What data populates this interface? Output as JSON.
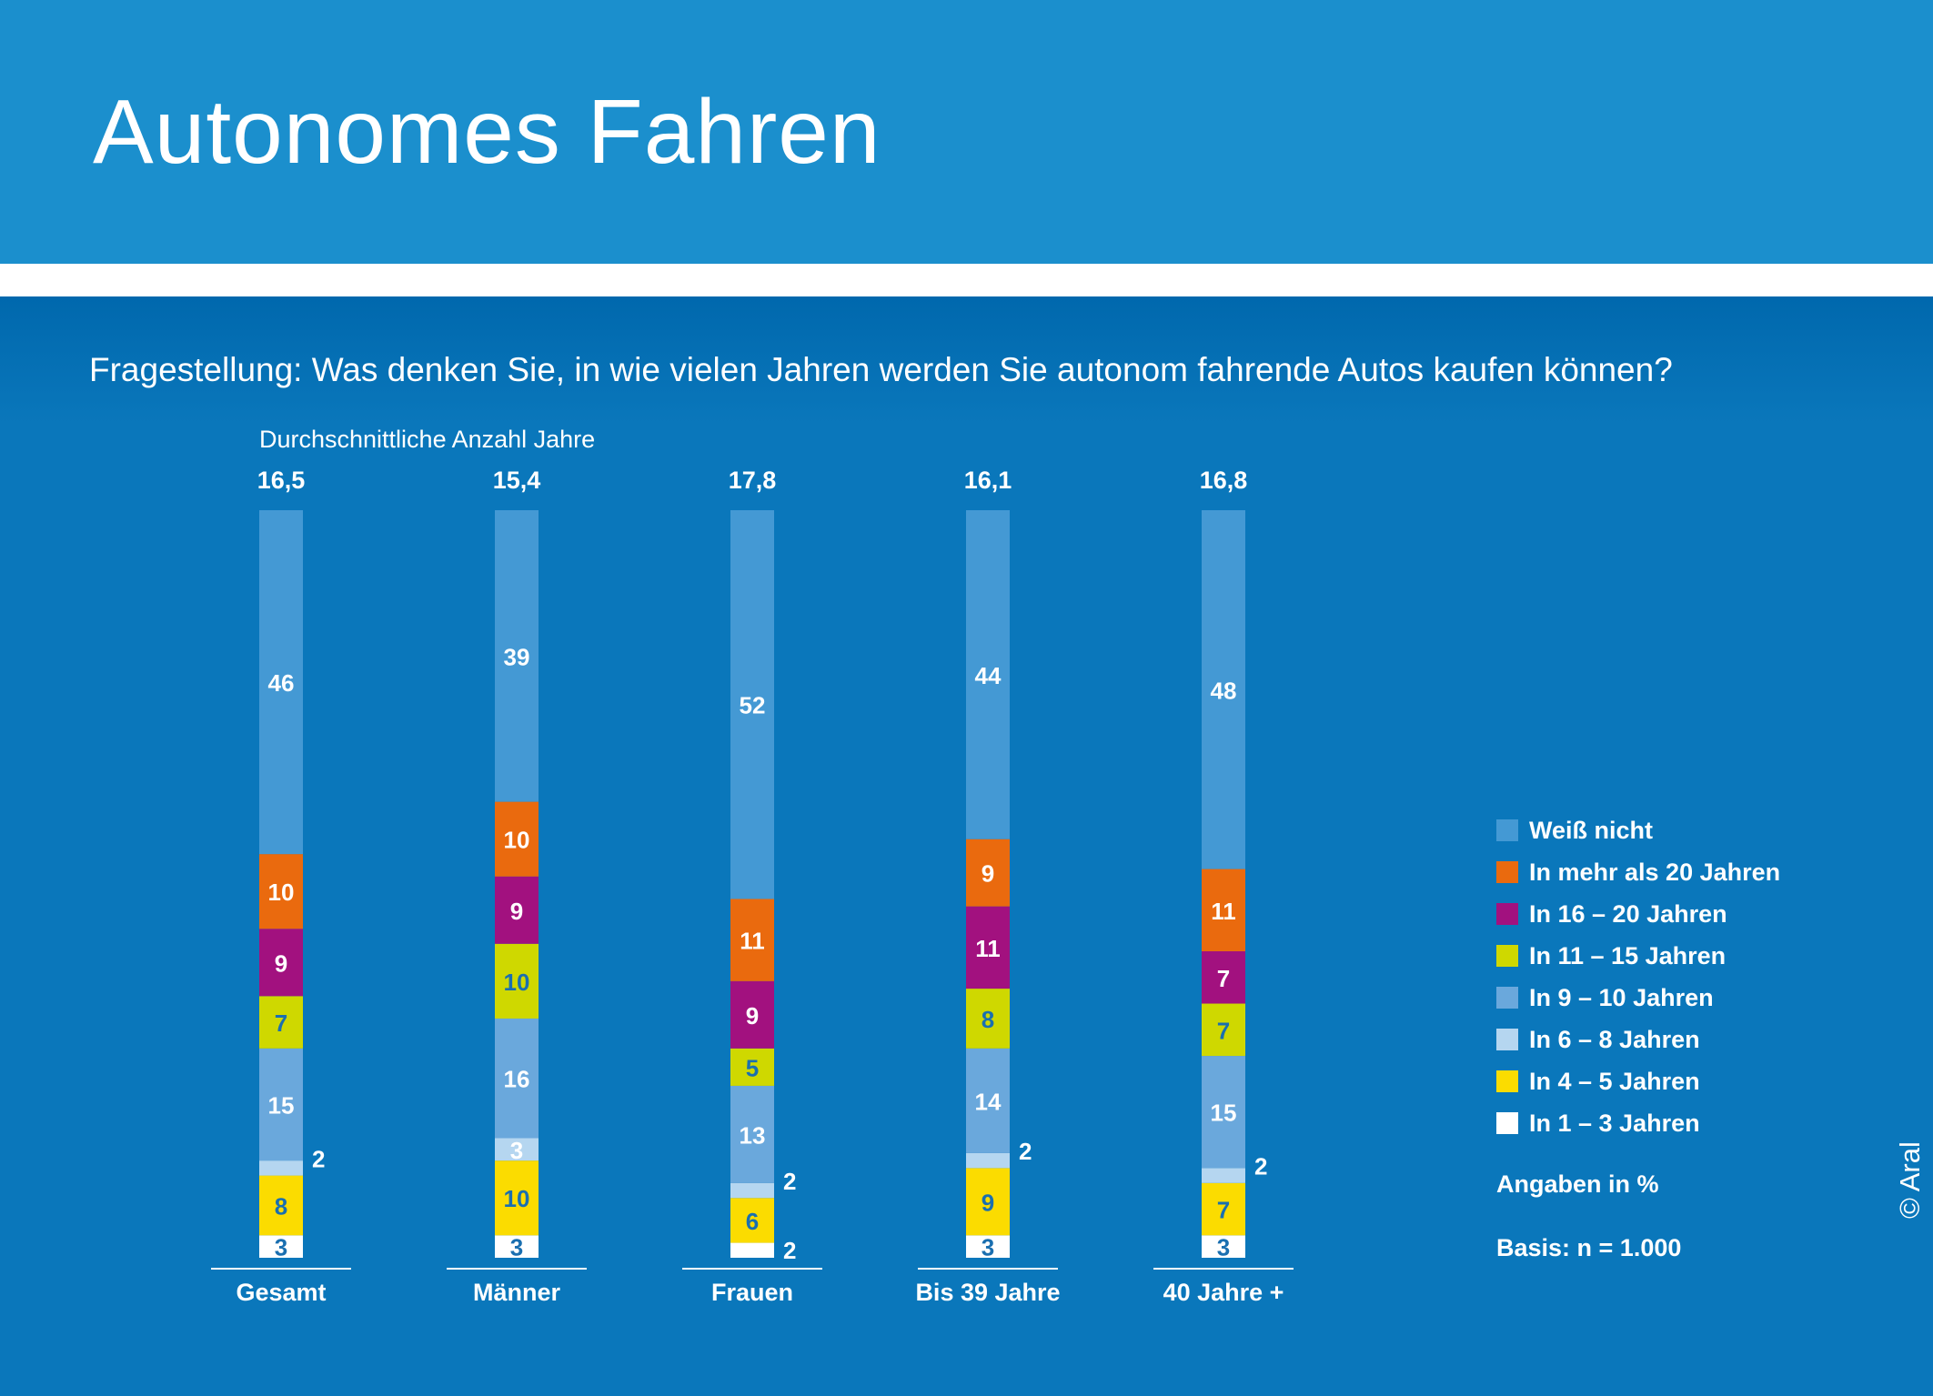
{
  "title": "Autonomes Fahren",
  "question": "Fragestellung: Was denken Sie, in wie vielen Jahren werden Sie autonom fahrende Autos kaufen können?",
  "average_caption": "Durchschnittliche Anzahl Jahre",
  "unit_note": "Angaben in %",
  "basis_note": "Basis: n = 1.000",
  "copyright": "© Aral",
  "colors": {
    "header": "#1b8fcd",
    "background": "#0a77bb",
    "label_white": "#ffffff",
    "label_blue": "#1a6fb0"
  },
  "chart_data": {
    "type": "bar",
    "stacked": true,
    "categories": [
      "Gesamt",
      "Männer",
      "Frauen",
      "Bis 39 Jahre",
      "40 Jahre +"
    ],
    "averages": [
      "16,5",
      "15,4",
      "17,8",
      "16,1",
      "16,8"
    ],
    "series": [
      {
        "name": "In 1 – 3 Jahren",
        "color": "#ffffff",
        "label_color": "#1a6fb0",
        "values": [
          3,
          3,
          2,
          3,
          3
        ]
      },
      {
        "name": "In 4 – 5 Jahren",
        "color": "#fbdc00",
        "label_color": "#1a6fb0",
        "values": [
          8,
          10,
          6,
          9,
          7
        ]
      },
      {
        "name": "In 6 – 8 Jahren",
        "color": "#b5d6f0",
        "label_color": "#ffffff",
        "values": [
          2,
          3,
          2,
          2,
          2
        ]
      },
      {
        "name": "In 9 – 10 Jahren",
        "color": "#6aa8dc",
        "label_color": "#ffffff",
        "values": [
          15,
          16,
          13,
          14,
          15
        ]
      },
      {
        "name": "In 11 – 15 Jahren",
        "color": "#cfd800",
        "label_color": "#1a6fb0",
        "values": [
          7,
          10,
          5,
          8,
          7
        ]
      },
      {
        "name": "In 16 – 20 Jahren",
        "color": "#a2117f",
        "label_color": "#ffffff",
        "values": [
          9,
          9,
          9,
          11,
          7
        ]
      },
      {
        "name": "In mehr als 20 Jahren",
        "color": "#ea6a0e",
        "label_color": "#ffffff",
        "values": [
          10,
          10,
          11,
          9,
          11
        ]
      },
      {
        "name": "Weiß nicht",
        "color": "#4499d4",
        "label_color": "#ffffff",
        "values": [
          46,
          39,
          52,
          44,
          48
        ]
      }
    ],
    "legend_order": [
      "Weiß nicht",
      "In mehr als 20 Jahren",
      "In 16 – 20 Jahren",
      "In 11 – 15 Jahren",
      "In 9 – 10 Jahren",
      "In 6 – 8 Jahren",
      "In 4 – 5 Jahren",
      "In 1 – 3 Jahren"
    ],
    "legend_position": "right",
    "grid": false
  }
}
